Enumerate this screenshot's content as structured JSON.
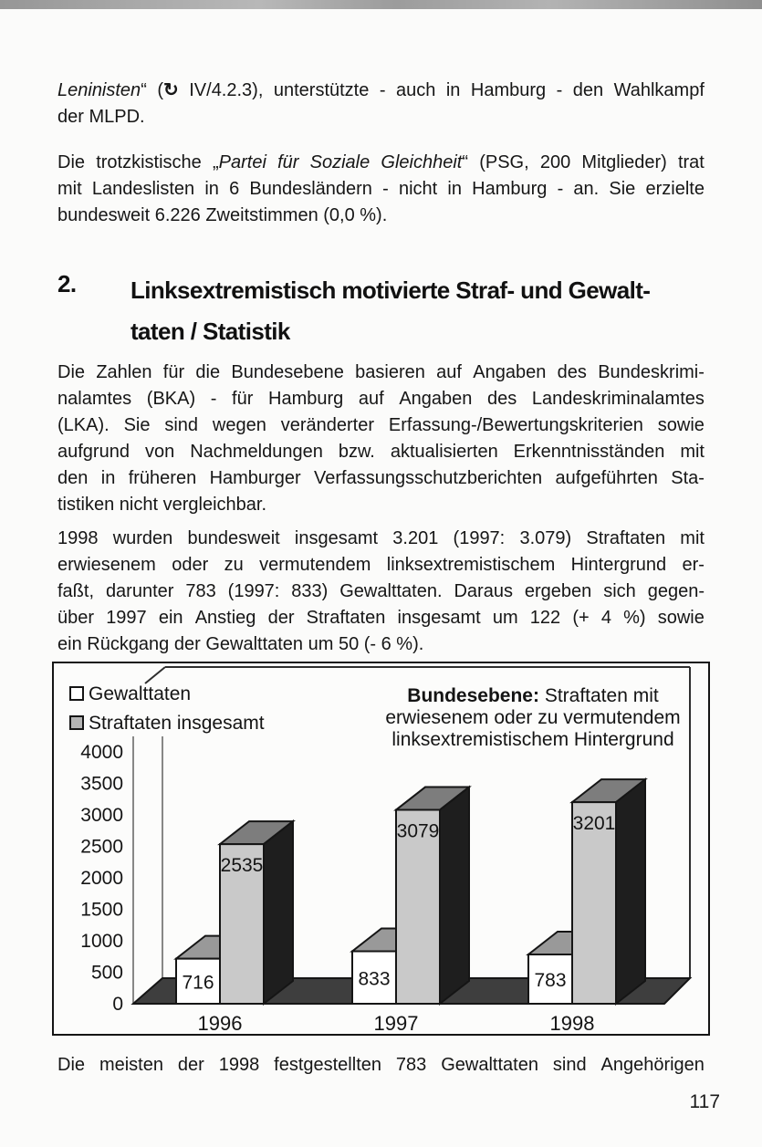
{
  "page_number": "117",
  "content": {
    "p1": {
      "lines": [
        [
          {
            "t": "Leninisten",
            "s": "i"
          },
          {
            "t": "“ ("
          },
          {
            "t": "↻",
            "s": "b"
          },
          {
            "t": " IV/4.2.3), unterstützte - auch in Hamburg - den Wahlkampf"
          }
        ],
        [
          {
            "t": "der MLPD."
          }
        ]
      ]
    },
    "p2": {
      "lines": [
        [
          {
            "t": "Die trotzkistische „"
          },
          {
            "t": "Partei für Soziale Gleichheit",
            "s": "i"
          },
          {
            "t": "“ (PSG, 200 Mitglieder) trat"
          }
        ],
        [
          {
            "t": "mit Landeslisten in 6 Bundesländern - nicht in Hamburg - an. Sie erzielte"
          }
        ],
        [
          {
            "t": "bundesweit 6.226 Zweitstimmen (0,0 %)."
          }
        ]
      ]
    },
    "heading": {
      "number": "2.",
      "lines": [
        "Linksextremistisch motivierte Straf- und Gewalt-",
        "taten / Statistik"
      ]
    },
    "p3": {
      "lines": [
        [
          {
            "t": "Die Zahlen für die Bundesebene basieren auf Angaben des Bundeskrimi-"
          }
        ],
        [
          {
            "t": "nalamtes (BKA) - für Hamburg auf Angaben des Landeskriminalamtes"
          }
        ],
        [
          {
            "t": "(LKA). Sie sind wegen veränderter Erfassung-/Bewertungskriterien sowie"
          }
        ],
        [
          {
            "t": "aufgrund von Nachmeldungen bzw. aktualisierten Erkenntnisständen mit"
          }
        ],
        [
          {
            "t": "den in früheren Hamburger Verfassungsschutzberichten aufgeführten Sta-"
          }
        ],
        [
          {
            "t": "tistiken nicht vergleichbar."
          }
        ]
      ]
    },
    "p4": {
      "lines": [
        [
          {
            "t": "1998 wurden bundesweit insgesamt 3.201 (1997: 3.079) Straftaten mit"
          }
        ],
        [
          {
            "t": "erwiesenem oder zu vermutendem linksextremistischem Hintergrund er-"
          }
        ],
        [
          {
            "t": "faßt, darunter 783 (1997: 833) Gewalttaten. Daraus ergeben sich gegen-"
          }
        ],
        [
          {
            "t": "über 1997 ein Anstieg der Straftaten insgesamt um 122 (+ 4 %) sowie"
          }
        ],
        [
          {
            "t": "ein Rückgang der Gewalttaten um 50 (- 6 %)."
          }
        ]
      ]
    },
    "p5": {
      "justify_all": true,
      "lines": [
        [
          {
            "t": "Die meisten der 1998 festgestellten 783 Gewalttaten sind Angehörigen"
          }
        ]
      ]
    }
  },
  "chart_data": {
    "type": "bar",
    "categories": [
      "1996",
      "1997",
      "1998"
    ],
    "series": [
      {
        "name": "Gewalttaten",
        "values": [
          716,
          833,
          783
        ],
        "color": "#ffffff"
      },
      {
        "name": "Straftaten insgesamt",
        "values": [
          2535,
          3079,
          3201
        ],
        "color": "#c9c9c9"
      }
    ],
    "title_bold": "Bundesebene:",
    "title_lines": [
      "Bundesebene: Straftaten mit",
      "erwiesenem oder zu vermutendem",
      "linksextremistischem Hintergrund"
    ],
    "xlabel": "",
    "ylabel": "",
    "ylim": [
      0,
      4000
    ],
    "ytick_step": 500,
    "grid": false,
    "legend_position": "top-left",
    "style_3d": true,
    "colors": {
      "bar_white_top": "#999999",
      "bar_gray_top": "#7d7d7d",
      "bar_gray_side": "#1e1e1e",
      "floor": "#3e3e3e",
      "outline": "#151515",
      "axis_line": "#6a6a6a"
    }
  }
}
